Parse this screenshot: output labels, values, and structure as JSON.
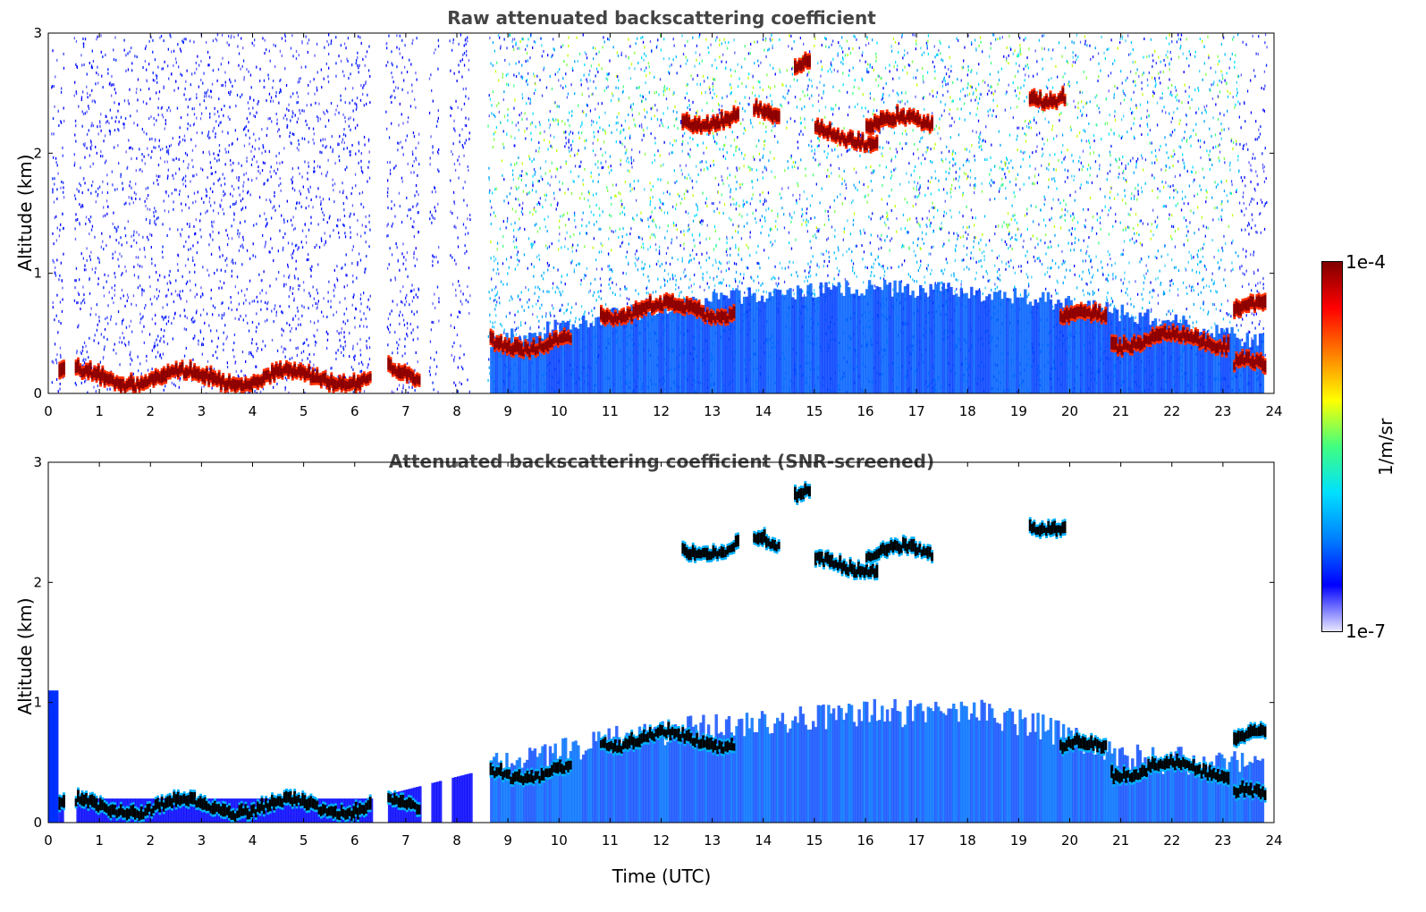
{
  "chart_data": [
    {
      "type": "heatmap",
      "title": "Raw attenuated backscattering coefficient",
      "xlabel": "",
      "ylabel": "Altitude (km)",
      "xlim": [
        0,
        24
      ],
      "ylim": [
        0,
        3
      ],
      "xticks": [
        "0",
        "1",
        "2",
        "3",
        "4",
        "5",
        "6",
        "7",
        "8",
        "9",
        "10",
        "11",
        "12",
        "13",
        "14",
        "15",
        "16",
        "17",
        "18",
        "19",
        "20",
        "21",
        "22",
        "23",
        "24"
      ],
      "yticks": [
        "0",
        "1",
        "2",
        "3"
      ],
      "data_gaps_hours": [
        [
          0.3,
          0.5
        ],
        [
          6.3,
          6.6
        ],
        [
          7.25,
          7.45
        ],
        [
          7.65,
          7.85
        ],
        [
          8.25,
          8.6
        ]
      ],
      "cloud_layers": [
        {
          "x_start": 0.2,
          "x_end": 6.3,
          "alt_km": 0.09
        },
        {
          "x_start": 6.6,
          "x_end": 7.25,
          "alt_km": 0.12
        },
        {
          "x_start": 8.6,
          "x_end": 10.2,
          "alt_km": 0.38
        },
        {
          "x_start": 10.8,
          "x_end": 13.4,
          "alt_km": 0.65
        },
        {
          "x_start": 12.4,
          "x_end": 13.5,
          "alt_km": 2.25
        },
        {
          "x_start": 13.8,
          "x_end": 14.3,
          "alt_km": 2.3
        },
        {
          "x_start": 14.6,
          "x_end": 14.9,
          "alt_km": 2.7
        },
        {
          "x_start": 15.0,
          "x_end": 16.2,
          "alt_km": 2.1
        },
        {
          "x_start": 16.0,
          "x_end": 17.3,
          "alt_km": 2.2
        },
        {
          "x_start": 19.2,
          "x_end": 19.9,
          "alt_km": 2.45
        },
        {
          "x_start": 19.8,
          "x_end": 20.7,
          "alt_km": 0.57
        },
        {
          "x_start": 20.8,
          "x_end": 23.1,
          "alt_km": 0.4
        },
        {
          "x_start": 23.2,
          "x_end": 23.8,
          "alt_km": 0.65
        },
        {
          "x_start": 23.2,
          "x_end": 23.8,
          "alt_km": 0.17
        }
      ]
    },
    {
      "type": "heatmap",
      "title": "Attenuated backscattering coefficient (SNR-screened)",
      "xlabel": "Time (UTC)",
      "ylabel": "Altitude (km)",
      "xlim": [
        0,
        24
      ],
      "ylim": [
        0,
        3
      ],
      "xticks": [
        "0",
        "1",
        "2",
        "3",
        "4",
        "5",
        "6",
        "7",
        "8",
        "9",
        "10",
        "11",
        "12",
        "13",
        "14",
        "15",
        "16",
        "17",
        "18",
        "19",
        "20",
        "21",
        "22",
        "23",
        "24"
      ],
      "yticks": [
        "0",
        "1",
        "2",
        "3"
      ],
      "boundary_layer_top_km": [
        {
          "x": 0.2,
          "y": 0.2
        },
        {
          "x": 6.3,
          "y": 0.2
        },
        {
          "x": 8.6,
          "y": 0.45
        },
        {
          "x": 10,
          "y": 0.55
        },
        {
          "x": 12,
          "y": 0.7
        },
        {
          "x": 14,
          "y": 0.8
        },
        {
          "x": 16,
          "y": 0.85
        },
        {
          "x": 18,
          "y": 0.9
        },
        {
          "x": 19.7,
          "y": 0.7
        },
        {
          "x": 21,
          "y": 0.5
        },
        {
          "x": 23.8,
          "y": 0.4
        }
      ]
    }
  ],
  "colorbar": {
    "max_label": "1e-4",
    "min_label": "1e-7",
    "unit": "1/m/sr",
    "colormap": "jet",
    "colors": [
      "#e8e8ff",
      "#0000ff",
      "#0080ff",
      "#00e0ff",
      "#40ff80",
      "#ffff00",
      "#ff8000",
      "#ff0000",
      "#800000"
    ]
  }
}
